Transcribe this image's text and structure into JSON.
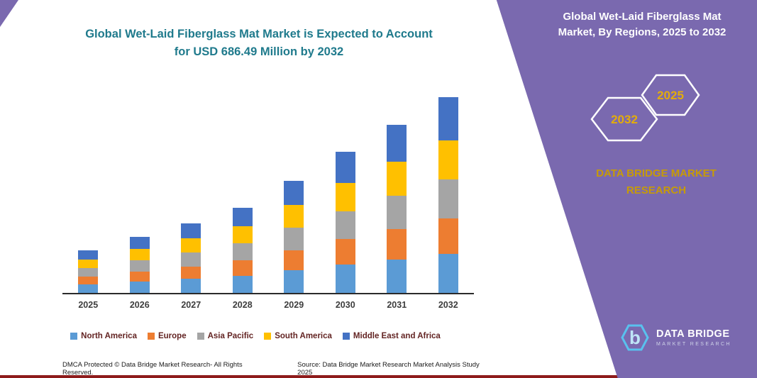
{
  "main": {
    "title_line1": "Global Wet-Laid Fiberglass Mat Market is Expected to Account",
    "title_line2": "for USD 686.49 Million by 2032"
  },
  "panel": {
    "heading_line1": "Global Wet-Laid Fiberglass Mat",
    "heading_line2": "Market, By Regions, 2025 to 2032",
    "hex_left_year": "2032",
    "hex_right_year": "2025",
    "brand_line1": "DATA BRIDGE MARKET",
    "brand_line2": "RESEARCH"
  },
  "logo": {
    "name": "DATA BRIDGE",
    "tagline": "MARKET RESEARCH",
    "icon": "hexagon-b-icon"
  },
  "footer": {
    "dmca": "DMCA Protected © Data Bridge Market Research-  All Rights Reserved.",
    "source": "Source: Data Bridge Market Research  Market Analysis Study 2025"
  },
  "colors": {
    "teal_title": "#1F7A8C",
    "purple_panel": "#7A69AF",
    "gold_accent": "#C79B07",
    "red_bottom_bar": "#8E1B1B"
  },
  "chart_data": {
    "type": "bar",
    "stacked": true,
    "title": "",
    "xlabel": "",
    "ylabel": "",
    "unit": "USD Million (estimated from bar heights; 2032 total = 686.49)",
    "axis_labels_visible": false,
    "grid": false,
    "legend_position": "bottom",
    "ylim": [
      0,
      700
    ],
    "categories": [
      "2025",
      "2026",
      "2027",
      "2028",
      "2029",
      "2030",
      "2031",
      "2032"
    ],
    "totals": [
      150,
      197,
      244,
      299,
      393,
      495,
      590,
      686.49
    ],
    "series": [
      {
        "name": "North America",
        "color": "#5B9BD5",
        "values": [
          30,
          39,
          49,
          60,
          79,
          99,
          118,
          137
        ]
      },
      {
        "name": "Europe",
        "color": "#ED7D31",
        "values": [
          27,
          36,
          44,
          54,
          71,
          89,
          106,
          124
        ]
      },
      {
        "name": "Asia Pacific",
        "color": "#A5A5A5",
        "values": [
          30,
          39,
          49,
          60,
          79,
          99,
          118,
          137
        ]
      },
      {
        "name": "South America",
        "color": "#FFC000",
        "values": [
          30,
          39,
          49,
          60,
          79,
          99,
          118,
          137
        ]
      },
      {
        "name": "Middle East and Africa",
        "color": "#4472C4",
        "values": [
          33,
          44,
          53,
          65,
          85,
          109,
          130,
          151.49
        ]
      }
    ]
  }
}
